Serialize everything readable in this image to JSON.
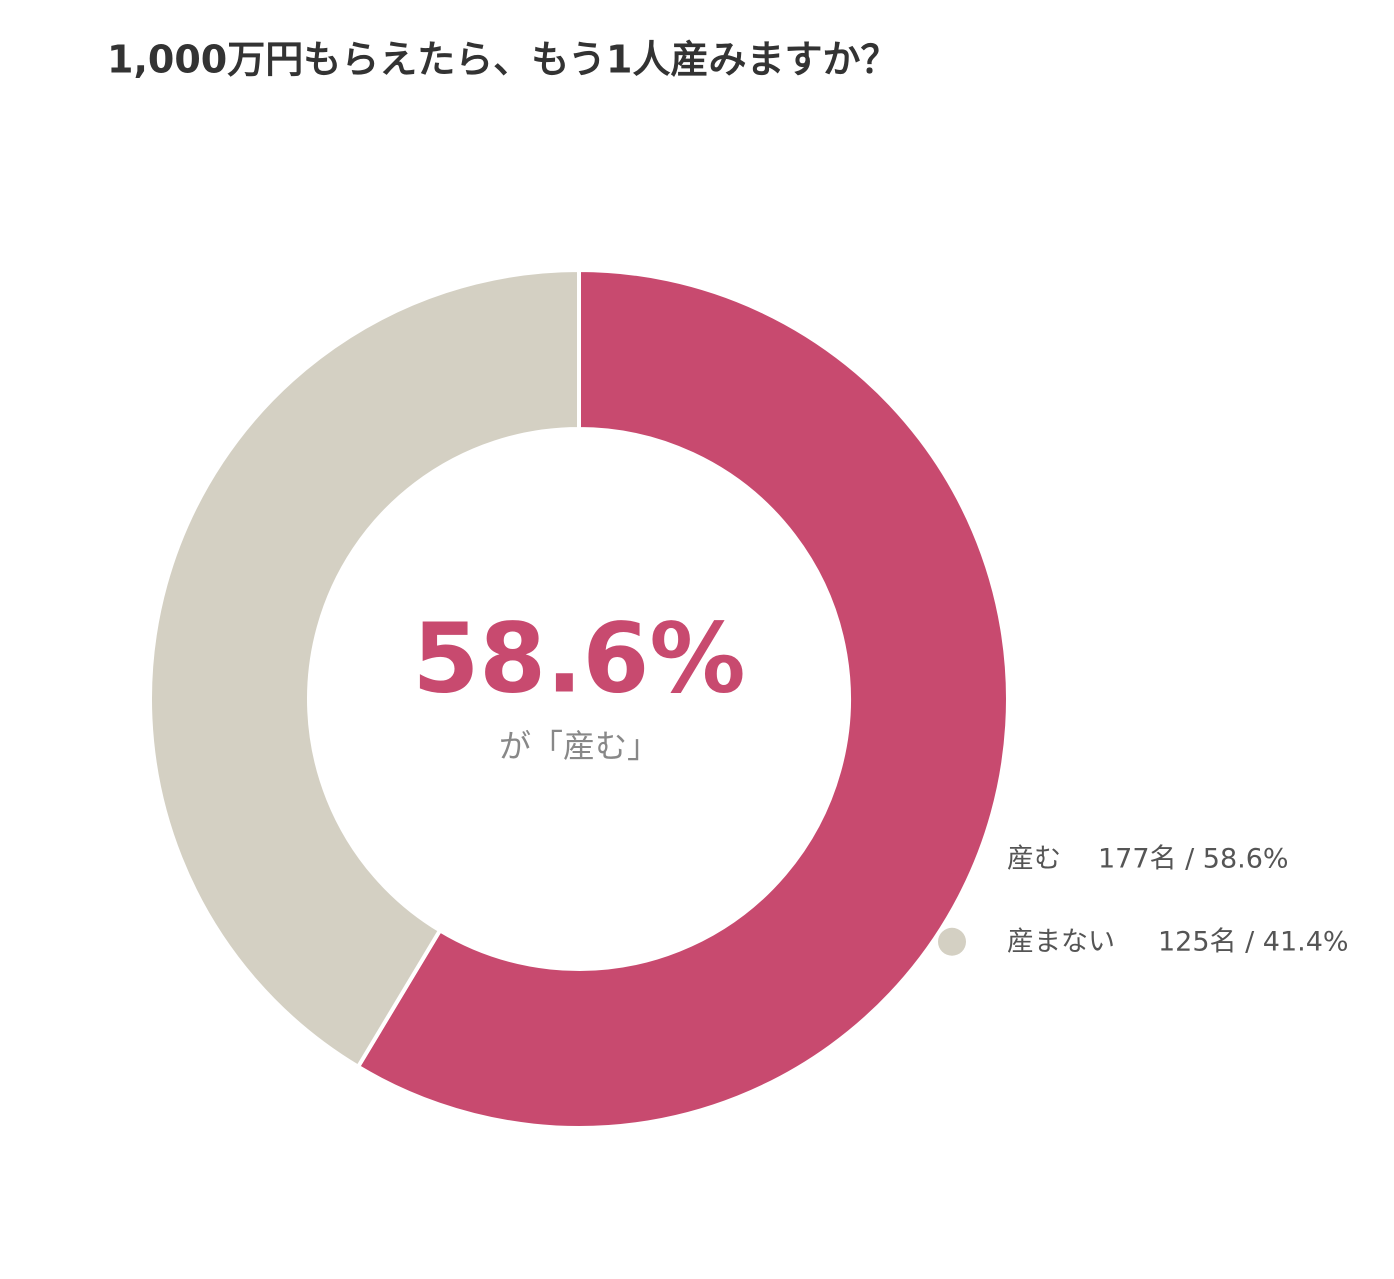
{
  "chart_data": {
    "type": "donut",
    "title": "1,000万円もらえたら、もう1人産みますか？",
    "categories": [
      "産む",
      "産まない"
    ],
    "values": [
      177,
      125
    ],
    "value_labels": [
      "177名 / 58.6%",
      "125名 / 41.4%"
    ],
    "colors": [
      "#c84a6f",
      "#d4d0c3"
    ],
    "center_label": "58.6%",
    "center_caption": "が「産む」"
  }
}
